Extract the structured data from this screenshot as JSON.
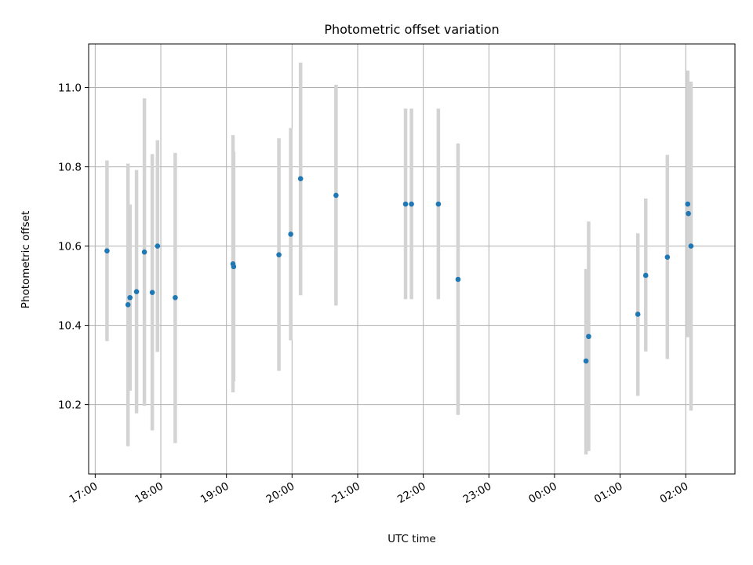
{
  "chart_data": {
    "type": "scatter",
    "title": "Photometric offset variation",
    "xlabel": "UTC time",
    "ylabel": "Photometric offset",
    "grid": true,
    "x_axis": {
      "range_hours": [
        16.9,
        26.75
      ],
      "ticks": [
        {
          "hour": 17,
          "label": "17:00"
        },
        {
          "hour": 18,
          "label": "18:00"
        },
        {
          "hour": 19,
          "label": "19:00"
        },
        {
          "hour": 20,
          "label": "20:00"
        },
        {
          "hour": 21,
          "label": "21:00"
        },
        {
          "hour": 22,
          "label": "22:00"
        },
        {
          "hour": 23,
          "label": "23:00"
        },
        {
          "hour": 24,
          "label": "00:00"
        },
        {
          "hour": 25,
          "label": "01:00"
        },
        {
          "hour": 26,
          "label": "02:00"
        }
      ]
    },
    "y_axis": {
      "range": [
        10.025,
        11.11
      ],
      "ticks": [
        {
          "value": 10.2,
          "label": "10.2"
        },
        {
          "value": 10.4,
          "label": "10.4"
        },
        {
          "value": 10.6,
          "label": "10.6"
        },
        {
          "value": 10.8,
          "label": "10.8"
        },
        {
          "value": 11.0,
          "label": "11.0"
        }
      ]
    },
    "colors": {
      "point": "#1f77b4",
      "errorbar": "#d3d3d3",
      "grid": "#b0b0b0"
    },
    "points": [
      {
        "x": 17.18,
        "y": 10.588,
        "ylo": 10.36,
        "yhi": 10.816
      },
      {
        "x": 17.5,
        "y": 10.452,
        "ylo": 10.095,
        "yhi": 10.808
      },
      {
        "x": 17.53,
        "y": 10.47,
        "ylo": 10.235,
        "yhi": 10.705
      },
      {
        "x": 17.63,
        "y": 10.485,
        "ylo": 10.178,
        "yhi": 10.792
      },
      {
        "x": 17.75,
        "y": 10.585,
        "ylo": 10.197,
        "yhi": 10.973
      },
      {
        "x": 17.87,
        "y": 10.483,
        "ylo": 10.135,
        "yhi": 10.832
      },
      {
        "x": 17.95,
        "y": 10.6,
        "ylo": 10.333,
        "yhi": 10.867
      },
      {
        "x": 18.22,
        "y": 10.47,
        "ylo": 10.103,
        "yhi": 10.835
      },
      {
        "x": 19.1,
        "y": 10.555,
        "ylo": 10.231,
        "yhi": 10.88
      },
      {
        "x": 19.11,
        "y": 10.548,
        "ylo": 10.259,
        "yhi": 10.838
      },
      {
        "x": 19.8,
        "y": 10.578,
        "ylo": 10.285,
        "yhi": 10.872
      },
      {
        "x": 19.98,
        "y": 10.63,
        "ylo": 10.362,
        "yhi": 10.898
      },
      {
        "x": 20.13,
        "y": 10.77,
        "ylo": 10.476,
        "yhi": 11.063
      },
      {
        "x": 20.67,
        "y": 10.728,
        "ylo": 10.45,
        "yhi": 11.007
      },
      {
        "x": 21.73,
        "y": 10.706,
        "ylo": 10.466,
        "yhi": 10.947
      },
      {
        "x": 21.82,
        "y": 10.706,
        "ylo": 10.466,
        "yhi": 10.947
      },
      {
        "x": 22.23,
        "y": 10.706,
        "ylo": 10.466,
        "yhi": 10.947
      },
      {
        "x": 22.53,
        "y": 10.516,
        "ylo": 10.174,
        "yhi": 10.859
      },
      {
        "x": 24.48,
        "y": 10.31,
        "ylo": 10.074,
        "yhi": 10.542
      },
      {
        "x": 24.52,
        "y": 10.372,
        "ylo": 10.083,
        "yhi": 10.662
      },
      {
        "x": 25.27,
        "y": 10.428,
        "ylo": 10.222,
        "yhi": 10.632
      },
      {
        "x": 25.39,
        "y": 10.526,
        "ylo": 10.334,
        "yhi": 10.72
      },
      {
        "x": 25.72,
        "y": 10.572,
        "ylo": 10.315,
        "yhi": 10.83
      },
      {
        "x": 26.03,
        "y": 10.706,
        "ylo": 10.37,
        "yhi": 11.043
      },
      {
        "x": 26.04,
        "y": 10.682,
        "ylo": 10.415,
        "yhi": 10.95
      },
      {
        "x": 26.08,
        "y": 10.6,
        "ylo": 10.185,
        "yhi": 11.015
      }
    ]
  }
}
